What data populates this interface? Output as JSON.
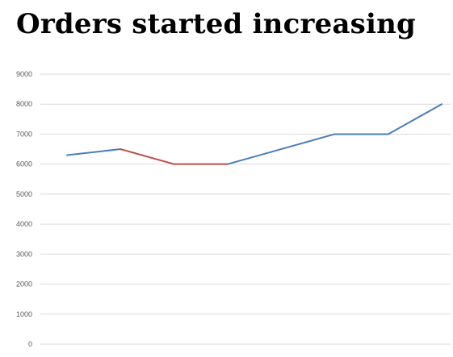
{
  "title": "Orders started increasing",
  "chart_data": {
    "type": "line",
    "title": "Orders started increasing",
    "xlabel": "",
    "ylabel": "",
    "ylim": [
      0,
      9000
    ],
    "yticks": [
      0,
      1000,
      2000,
      3000,
      4000,
      5000,
      6000,
      7000,
      8000,
      9000
    ],
    "x": [
      1,
      2,
      3,
      4,
      5,
      6,
      7,
      8
    ],
    "values": [
      6300,
      6500,
      6000,
      6000,
      6500,
      7000,
      7000,
      8000
    ],
    "grid": true,
    "legend": "none",
    "colors": {
      "line": "#4a7ebb",
      "highlight": "#be4b48",
      "grid": "#d9d9d9",
      "tick_label": "#595959"
    },
    "highlight_segments": [
      [
        1,
        3
      ]
    ]
  }
}
